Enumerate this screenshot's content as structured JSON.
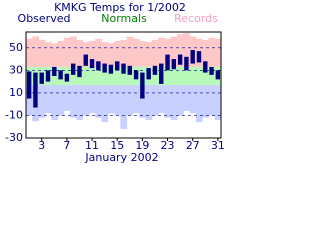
{
  "chart_data": {
    "type": "range-bar",
    "title": "KMKG Temps for 1/2002",
    "x_label": "January 2002",
    "x": [
      1,
      2,
      3,
      4,
      5,
      6,
      7,
      8,
      9,
      10,
      11,
      12,
      13,
      14,
      15,
      16,
      17,
      18,
      19,
      20,
      21,
      22,
      23,
      24,
      25,
      26,
      27,
      28,
      29,
      30,
      31
    ],
    "xlim": [
      0.5,
      31.5
    ],
    "xticks": [
      3,
      7,
      11,
      15,
      19,
      23,
      27,
      31
    ],
    "ylim": [
      -30,
      64
    ],
    "yticks": [
      -30,
      -10,
      10,
      30,
      50
    ],
    "grid": true,
    "series": [
      {
        "name": "Observed",
        "color": "#000080",
        "high": [
          29,
          28,
          28,
          30,
          33,
          30,
          27,
          36,
          34,
          44,
          40,
          38,
          36,
          35,
          38,
          36,
          34,
          30,
          28,
          32,
          34,
          36,
          44,
          40,
          44,
          42,
          48,
          47,
          38,
          33,
          30
        ],
        "low": [
          5,
          -3,
          18,
          20,
          25,
          22,
          20,
          26,
          24,
          34,
          32,
          30,
          28,
          27,
          30,
          27,
          26,
          22,
          5,
          22,
          26,
          18,
          30,
          31,
          35,
          30,
          36,
          37,
          28,
          26,
          22
        ]
      },
      {
        "name": "Normals",
        "color": "#008000",
        "band_color": "#b8f8b8",
        "high": [
          33,
          33,
          33,
          33,
          33,
          33,
          33,
          33,
          33,
          33,
          33,
          33,
          33,
          33,
          33,
          33,
          33,
          33,
          33,
          33,
          33,
          33,
          33,
          33,
          33,
          33,
          33,
          33,
          33,
          33,
          33
        ],
        "low": [
          17,
          17,
          17,
          17,
          17,
          17,
          17,
          17,
          17,
          17,
          17,
          17,
          17,
          17,
          17,
          17,
          17,
          17,
          17,
          17,
          17,
          17,
          17,
          17,
          17,
          17,
          17,
          17,
          17,
          17,
          17
        ]
      },
      {
        "name": "Records",
        "color": "#f0a0c8",
        "band_color": "#ffc8c8",
        "low_band_color": "#c8d0ff",
        "high": [
          58,
          60,
          57,
          55,
          54,
          56,
          59,
          60,
          57,
          55,
          56,
          58,
          55,
          54,
          56,
          57,
          60,
          58,
          56,
          55,
          57,
          59,
          58,
          60,
          62,
          63,
          60,
          58,
          57,
          59,
          58
        ],
        "low": [
          -10,
          -15,
          -12,
          -8,
          -14,
          -10,
          -6,
          -12,
          -14,
          -10,
          -8,
          -12,
          -16,
          -8,
          -10,
          -22,
          -10,
          -8,
          -12,
          -14,
          -10,
          -8,
          -12,
          -14,
          -10,
          -6,
          -8,
          -16,
          -12,
          -10,
          -14
        ]
      }
    ]
  }
}
